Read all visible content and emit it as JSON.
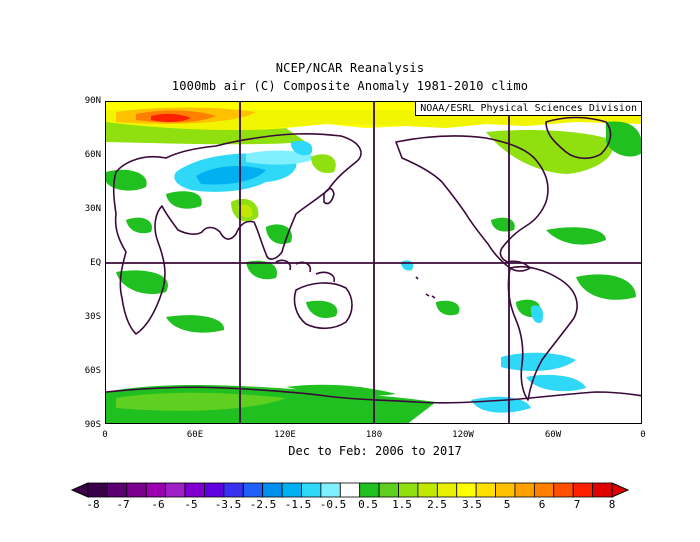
{
  "title_line1": "NCEP/NCAR Reanalysis",
  "title_line2": "1000mb air (C) Composite Anomaly 1981-2010 climo",
  "credit": "NOAA/ESRL Physical Sciences Division",
  "period": "Dec to Feb: 2006 to 2017",
  "lat_labels": [
    "90N",
    "60N",
    "30N",
    "EQ",
    "30S",
    "60S",
    "90S"
  ],
  "lon_labels": [
    "0",
    "60E",
    "120E",
    "180",
    "120W",
    "60W",
    "0"
  ],
  "colorbar": {
    "labels": [
      "-8",
      "-7",
      "-6",
      "-5",
      "-3.5",
      "-2.5",
      "-1.5",
      "-0.5",
      "0.5",
      "1.5",
      "2.5",
      "3.5",
      "5",
      "6",
      "7",
      "8"
    ],
    "colors": [
      "#3a0048",
      "#5b0070",
      "#7c0090",
      "#9a00b0",
      "#a020c8",
      "#8000d0",
      "#6000e0",
      "#3a30f0",
      "#2060f8",
      "#0090f0",
      "#00b0f0",
      "#30d8f8",
      "#80f0ff",
      "#ffffff",
      "#20c020",
      "#60d020",
      "#90e010",
      "#c0e800",
      "#e8f000",
      "#ffff00",
      "#ffe000",
      "#ffc000",
      "#ffa000",
      "#ff8000",
      "#ff5000",
      "#ff2000",
      "#e00000"
    ]
  }
}
